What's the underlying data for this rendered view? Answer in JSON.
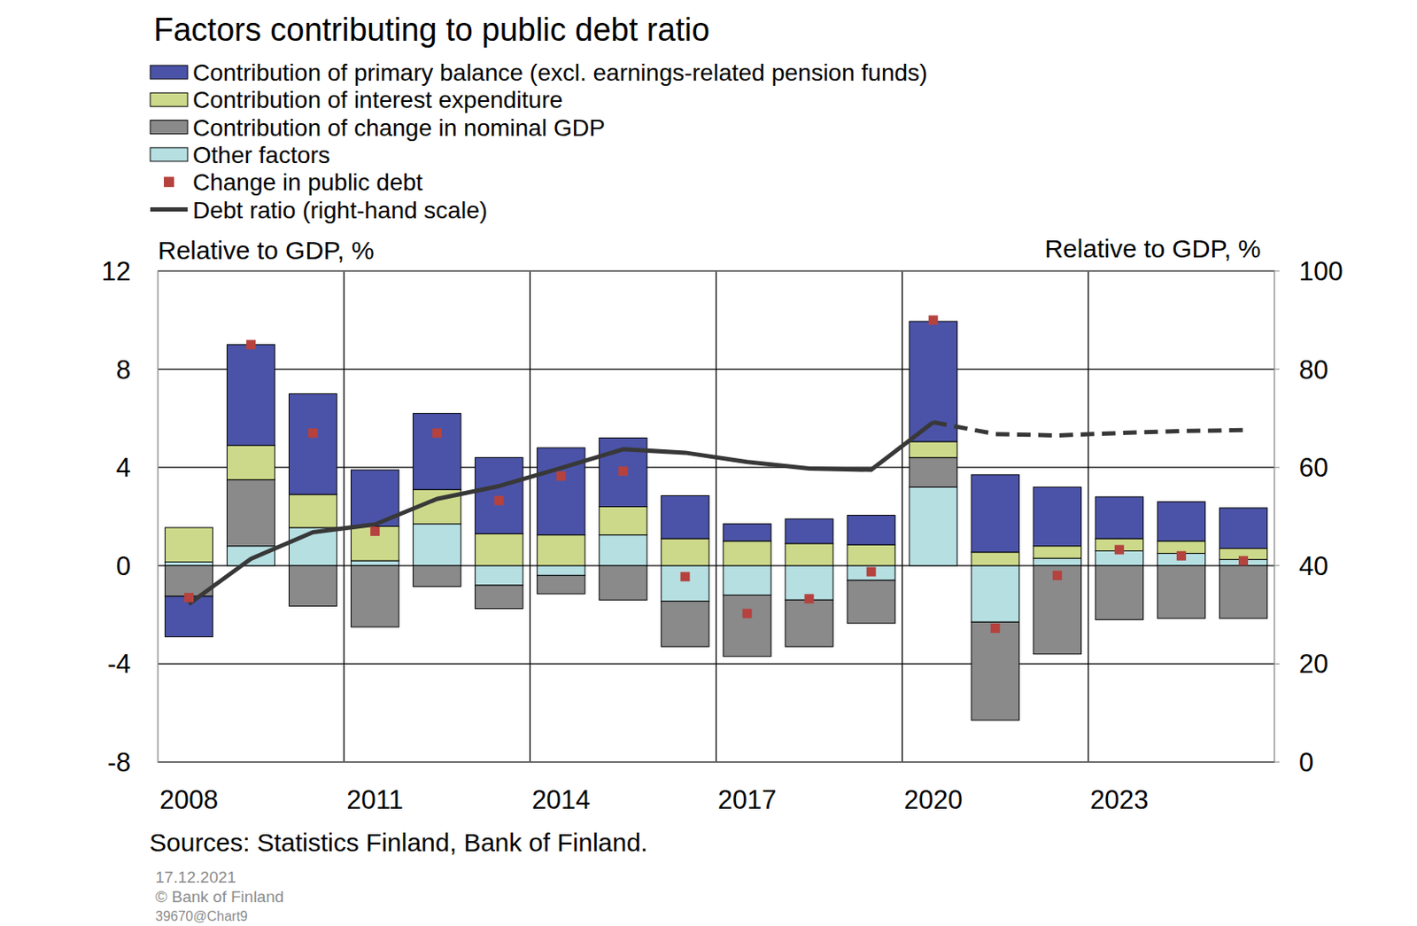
{
  "chart_data": {
    "type": "bar",
    "stacked": true,
    "title": "Factors contributing to public debt ratio",
    "y_label": "Relative to GDP, %",
    "y2_label": "Relative to GDP, %",
    "source": "Sources: Statistics Finland, Bank of Finland.",
    "footnotes": [
      "17.12.2021",
      "© Bank of Finland",
      "39670@Chart9"
    ],
    "categories": [
      "2008",
      null,
      null,
      "2011",
      null,
      null,
      "2014",
      null,
      null,
      "2017",
      null,
      null,
      "2020",
      null,
      null,
      "2023",
      null,
      null
    ],
    "ylim": [
      -8,
      12
    ],
    "yticks": [
      -8,
      -4,
      0,
      4,
      8,
      12
    ],
    "y2lim": [
      0,
      100
    ],
    "y2ticks": [
      0,
      20,
      40,
      60,
      80,
      100
    ],
    "grid": true,
    "legend": "top-left",
    "series": [
      {
        "name": "Contribution of primary balance (excl. earnings-related pension funds)",
        "type": "bar",
        "color": "#4b53a8",
        "values": [
          -1.65,
          4.1,
          4.1,
          2.3,
          3.1,
          3.1,
          3.55,
          2.8,
          1.75,
          0.7,
          1.0,
          1.2,
          4.9,
          3.15,
          2.4,
          1.7,
          1.6,
          1.65
        ]
      },
      {
        "name": "Contribution of interest expenditure",
        "type": "bar",
        "color": "#cdd98a",
        "values": [
          1.4,
          1.4,
          1.35,
          1.4,
          1.4,
          1.3,
          1.25,
          1.15,
          1.1,
          1.0,
          0.9,
          0.85,
          0.65,
          0.55,
          0.5,
          0.5,
          0.5,
          0.45
        ]
      },
      {
        "name": "Contribution of change in nominal GDP",
        "type": "bar",
        "color": "#8a8a8a",
        "values": [
          -1.25,
          2.7,
          -1.65,
          -2.5,
          -0.85,
          -0.95,
          -0.75,
          -1.4,
          -1.85,
          -2.5,
          -1.9,
          -1.75,
          1.2,
          -4.0,
          -3.6,
          -2.2,
          -2.15,
          -2.15
        ]
      },
      {
        "name": "Other factors",
        "type": "bar",
        "color": "#b6dfe2",
        "values": [
          0.15,
          0.8,
          1.55,
          0.2,
          1.7,
          -0.8,
          -0.4,
          1.25,
          -1.45,
          -1.2,
          -1.4,
          -0.6,
          3.2,
          -2.3,
          0.3,
          0.6,
          0.5,
          0.25
        ]
      },
      {
        "name": "Change in public debt",
        "type": "scatter",
        "marker": "square",
        "color": "#b5423e",
        "values": [
          -1.3,
          9.0,
          5.4,
          1.4,
          5.4,
          2.65,
          3.65,
          3.85,
          -0.45,
          -1.95,
          -1.35,
          -0.25,
          10.0,
          -2.55,
          -0.4,
          0.65,
          0.4,
          0.2
        ]
      },
      {
        "name": "Debt ratio (right-hand scale)",
        "type": "line",
        "axis": "y2",
        "line_style": "solid",
        "color": "#383838",
        "values": [
          32.2,
          41.4,
          46.8,
          48.4,
          53.6,
          56.2,
          59.9,
          63.7,
          63.0,
          61.1,
          59.8,
          59.5,
          69.2,
          null,
          null,
          null,
          null,
          null
        ]
      },
      {
        "type": "line",
        "axis": "y2",
        "line_style": "dashed",
        "color": "#383838",
        "values": [
          null,
          null,
          null,
          null,
          null,
          null,
          null,
          null,
          null,
          null,
          null,
          null,
          69.2,
          66.8,
          66.5,
          67.0,
          67.4,
          67.6
        ]
      }
    ]
  }
}
